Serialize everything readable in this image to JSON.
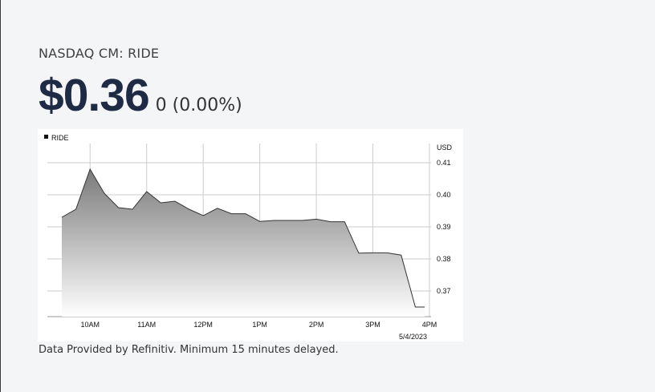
{
  "quote": {
    "exchange_symbol": "NASDAQ CM: RIDE",
    "price": "$0.36",
    "change": "0 (0.00%)"
  },
  "footnote": "Data Provided by Refinitiv. Minimum 15 minutes delayed.",
  "chart_data": {
    "type": "area",
    "legend": "RIDE",
    "ylabel": "USD",
    "date_label": "5/4/2023",
    "x_tick_labels": [
      "10AM",
      "11AM",
      "12PM",
      "1PM",
      "2PM",
      "3PM",
      "4PM"
    ],
    "y_ticks": [
      0.37,
      0.38,
      0.39,
      0.4,
      0.41
    ],
    "ylim": [
      0.362,
      0.416
    ],
    "x_range_minutes": [
      570,
      960
    ],
    "grid": true,
    "colors": {
      "line": "#333333",
      "fill_top": "#7a7a7a",
      "fill_bottom": "#ffffff",
      "grid": "#cccccc"
    },
    "series": [
      {
        "x": [
          "9:30",
          "9:45",
          "10:00",
          "10:15",
          "10:30",
          "10:45",
          "11:00",
          "11:15",
          "11:30",
          "11:45",
          "12:00",
          "12:15",
          "12:30",
          "12:45",
          "13:00",
          "13:15",
          "13:30",
          "13:45",
          "14:00",
          "14:15",
          "14:30",
          "14:45",
          "15:00",
          "15:15",
          "15:30",
          "15:45",
          "15:55"
        ],
        "y": [
          0.393,
          0.3955,
          0.408,
          0.4005,
          0.396,
          0.3955,
          0.401,
          0.3975,
          0.398,
          0.3955,
          0.3935,
          0.3958,
          0.3941,
          0.3941,
          0.3917,
          0.392,
          0.392,
          0.392,
          0.3924,
          0.3916,
          0.3916,
          0.3818,
          0.3819,
          0.3819,
          0.3812,
          0.365,
          0.365
        ]
      }
    ]
  }
}
